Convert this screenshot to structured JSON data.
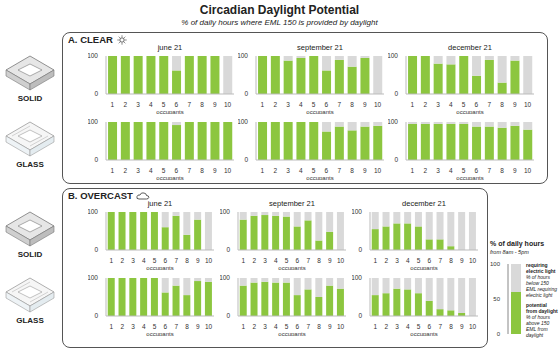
{
  "title": "Circadian Daylight Potential",
  "subtitle": "% of daily hours where EML 150 is provided by daylight",
  "legend_box": {
    "title": "% of daily hours",
    "subtitle": "from 8am - 5pm",
    "type": "bar",
    "stacked": true,
    "ylim": [
      0,
      100
    ],
    "yticks": [
      0,
      50,
      100
    ],
    "series": [
      {
        "name": "potential from daylight",
        "note": "% of hours above 150 EML from daylight",
        "color": "#8cc63f",
        "values": [
          60
        ]
      },
      {
        "name": "requiring electric light",
        "note": "% of hours below 150 EML requiring electric light",
        "color": "#d9d9d9",
        "values": [
          40
        ]
      }
    ]
  },
  "chart_data": [
    {
      "type": "bar",
      "stacked": true,
      "section": "A. CLEAR",
      "row": "SOLID",
      "title": "june 21",
      "x_label": "occupants",
      "categories": [
        "1",
        "2",
        "3",
        "4",
        "5",
        "6",
        "7",
        "8",
        "9",
        "10"
      ],
      "ylim": [
        0,
        100
      ],
      "yticks": [
        0,
        100
      ],
      "series": [
        {
          "color": "#8cc63f",
          "values": [
            100,
            100,
            100,
            100,
            100,
            62,
            100,
            100,
            100,
            0
          ]
        },
        {
          "color": "#d9d9d9",
          "values": [
            0,
            0,
            0,
            0,
            0,
            38,
            0,
            0,
            0,
            100
          ]
        }
      ]
    },
    {
      "type": "bar",
      "stacked": true,
      "section": "A. CLEAR",
      "row": "SOLID",
      "title": "september 21",
      "x_label": "occupants",
      "categories": [
        "1",
        "2",
        "3",
        "4",
        "5",
        "6",
        "7",
        "8",
        "9",
        "10"
      ],
      "ylim": [
        0,
        100
      ],
      "yticks": [
        0,
        100
      ],
      "series": [
        {
          "color": "#8cc63f",
          "values": [
            100,
            100,
            88,
            95,
            100,
            62,
            90,
            72,
            95,
            0
          ]
        },
        {
          "color": "#d9d9d9",
          "values": [
            0,
            0,
            12,
            5,
            0,
            38,
            10,
            28,
            5,
            100
          ]
        }
      ]
    },
    {
      "type": "bar",
      "stacked": true,
      "section": "A. CLEAR",
      "row": "SOLID",
      "title": "december 21",
      "x_label": "occupants",
      "categories": [
        "1",
        "2",
        "3",
        "4",
        "5",
        "6",
        "7",
        "8",
        "9",
        "10"
      ],
      "ylim": [
        0,
        100
      ],
      "yticks": [
        0,
        100
      ],
      "series": [
        {
          "color": "#8cc63f",
          "values": [
            100,
            100,
            80,
            78,
            100,
            48,
            90,
            30,
            88,
            0
          ]
        },
        {
          "color": "#d9d9d9",
          "values": [
            0,
            0,
            20,
            22,
            0,
            52,
            10,
            70,
            12,
            100
          ]
        }
      ]
    },
    {
      "type": "bar",
      "stacked": true,
      "section": "A. CLEAR",
      "row": "GLASS",
      "x_label": "occupants",
      "categories": [
        "1",
        "2",
        "3",
        "4",
        "5",
        "6",
        "7",
        "8",
        "9",
        "10"
      ],
      "ylim": [
        0,
        100
      ],
      "yticks": [
        0,
        100
      ],
      "series": [
        {
          "color": "#8cc63f",
          "values": [
            100,
            100,
            100,
            100,
            100,
            92,
            100,
            100,
            100,
            100
          ]
        },
        {
          "color": "#d9d9d9",
          "values": [
            0,
            0,
            0,
            0,
            0,
            8,
            0,
            0,
            0,
            0
          ]
        }
      ]
    },
    {
      "type": "bar",
      "stacked": true,
      "section": "A. CLEAR",
      "row": "GLASS",
      "x_label": "occupants",
      "categories": [
        "1",
        "2",
        "3",
        "4",
        "5",
        "6",
        "7",
        "8",
        "9",
        "10"
      ],
      "ylim": [
        0,
        100
      ],
      "yticks": [
        0,
        100
      ],
      "series": [
        {
          "color": "#8cc63f",
          "values": [
            100,
            100,
            100,
            100,
            100,
            75,
            88,
            78,
            88,
            90
          ]
        },
        {
          "color": "#d9d9d9",
          "values": [
            0,
            0,
            0,
            0,
            0,
            25,
            12,
            22,
            12,
            10
          ]
        }
      ]
    },
    {
      "type": "bar",
      "stacked": true,
      "section": "A. CLEAR",
      "row": "GLASS",
      "x_label": "occupants",
      "categories": [
        "1",
        "2",
        "3",
        "4",
        "5",
        "6",
        "7",
        "8",
        "9",
        "10"
      ],
      "ylim": [
        0,
        100
      ],
      "yticks": [
        0,
        100
      ],
      "series": [
        {
          "color": "#8cc63f",
          "values": [
            95,
            95,
            95,
            95,
            95,
            88,
            88,
            85,
            90,
            80
          ]
        },
        {
          "color": "#d9d9d9",
          "values": [
            5,
            5,
            5,
            5,
            5,
            12,
            12,
            15,
            10,
            20
          ]
        }
      ]
    },
    {
      "type": "bar",
      "stacked": true,
      "section": "B. OVERCAST",
      "row": "SOLID",
      "title": "june 21",
      "x_label": "occupants",
      "categories": [
        "1",
        "2",
        "3",
        "4",
        "5",
        "6",
        "7",
        "8",
        "9",
        "10"
      ],
      "ylim": [
        0,
        100
      ],
      "yticks": [
        0,
        100
      ],
      "series": [
        {
          "color": "#8cc63f",
          "values": [
            100,
            100,
            100,
            100,
            100,
            60,
            90,
            40,
            80,
            0
          ]
        },
        {
          "color": "#d9d9d9",
          "values": [
            0,
            0,
            0,
            0,
            0,
            40,
            10,
            60,
            20,
            100
          ]
        }
      ]
    },
    {
      "type": "bar",
      "stacked": true,
      "section": "B. OVERCAST",
      "row": "SOLID",
      "title": "september 21",
      "x_label": "occupants",
      "categories": [
        "1",
        "2",
        "3",
        "4",
        "5",
        "6",
        "7",
        "8",
        "9",
        "10"
      ],
      "ylim": [
        0,
        100
      ],
      "yticks": [
        0,
        100
      ],
      "series": [
        {
          "color": "#8cc63f",
          "values": [
            80,
            90,
            92,
            90,
            88,
            62,
            78,
            25,
            48,
            0
          ]
        },
        {
          "color": "#d9d9d9",
          "values": [
            20,
            10,
            8,
            10,
            12,
            38,
            22,
            75,
            52,
            100
          ]
        }
      ]
    },
    {
      "type": "bar",
      "stacked": true,
      "section": "B. OVERCAST",
      "row": "SOLID",
      "title": "december 21",
      "x_label": "occupants",
      "categories": [
        "1",
        "2",
        "3",
        "4",
        "5",
        "6",
        "7",
        "8",
        "9",
        "10"
      ],
      "ylim": [
        0,
        100
      ],
      "yticks": [
        0,
        100
      ],
      "series": [
        {
          "color": "#8cc63f",
          "values": [
            55,
            62,
            70,
            70,
            62,
            28,
            28,
            10,
            0,
            0
          ]
        },
        {
          "color": "#d9d9d9",
          "values": [
            45,
            38,
            30,
            30,
            38,
            72,
            72,
            90,
            100,
            100
          ]
        }
      ]
    },
    {
      "type": "bar",
      "stacked": true,
      "section": "B. OVERCAST",
      "row": "GLASS",
      "x_label": "occupants",
      "categories": [
        "1",
        "2",
        "3",
        "4",
        "5",
        "6",
        "7",
        "8",
        "9",
        "10"
      ],
      "ylim": [
        0,
        100
      ],
      "yticks": [
        0,
        100
      ],
      "series": [
        {
          "color": "#8cc63f",
          "values": [
            100,
            100,
            100,
            100,
            100,
            62,
            80,
            55,
            92,
            90
          ]
        },
        {
          "color": "#d9d9d9",
          "values": [
            0,
            0,
            0,
            0,
            0,
            38,
            20,
            45,
            8,
            10
          ]
        }
      ]
    },
    {
      "type": "bar",
      "stacked": true,
      "section": "B. OVERCAST",
      "row": "GLASS",
      "x_label": "occupants",
      "categories": [
        "1",
        "2",
        "3",
        "4",
        "5",
        "6",
        "7",
        "8",
        "9",
        "10"
      ],
      "ylim": [
        0,
        100
      ],
      "yticks": [
        0,
        100
      ],
      "series": [
        {
          "color": "#8cc63f",
          "values": [
            80,
            88,
            90,
            88,
            88,
            55,
            70,
            50,
            80,
            72
          ]
        },
        {
          "color": "#d9d9d9",
          "values": [
            20,
            12,
            10,
            12,
            12,
            45,
            30,
            50,
            20,
            28
          ]
        }
      ]
    },
    {
      "type": "bar",
      "stacked": true,
      "section": "B. OVERCAST",
      "row": "GLASS",
      "x_label": "occupants",
      "categories": [
        "1",
        "2",
        "3",
        "4",
        "5",
        "6",
        "7",
        "8",
        "9",
        "10"
      ],
      "ylim": [
        0,
        100
      ],
      "yticks": [
        0,
        100
      ],
      "series": [
        {
          "color": "#8cc63f",
          "values": [
            55,
            60,
            72,
            70,
            60,
            40,
            18,
            15,
            8,
            0
          ]
        },
        {
          "color": "#d9d9d9",
          "values": [
            45,
            40,
            28,
            30,
            40,
            60,
            82,
            85,
            92,
            100
          ]
        }
      ]
    }
  ]
}
